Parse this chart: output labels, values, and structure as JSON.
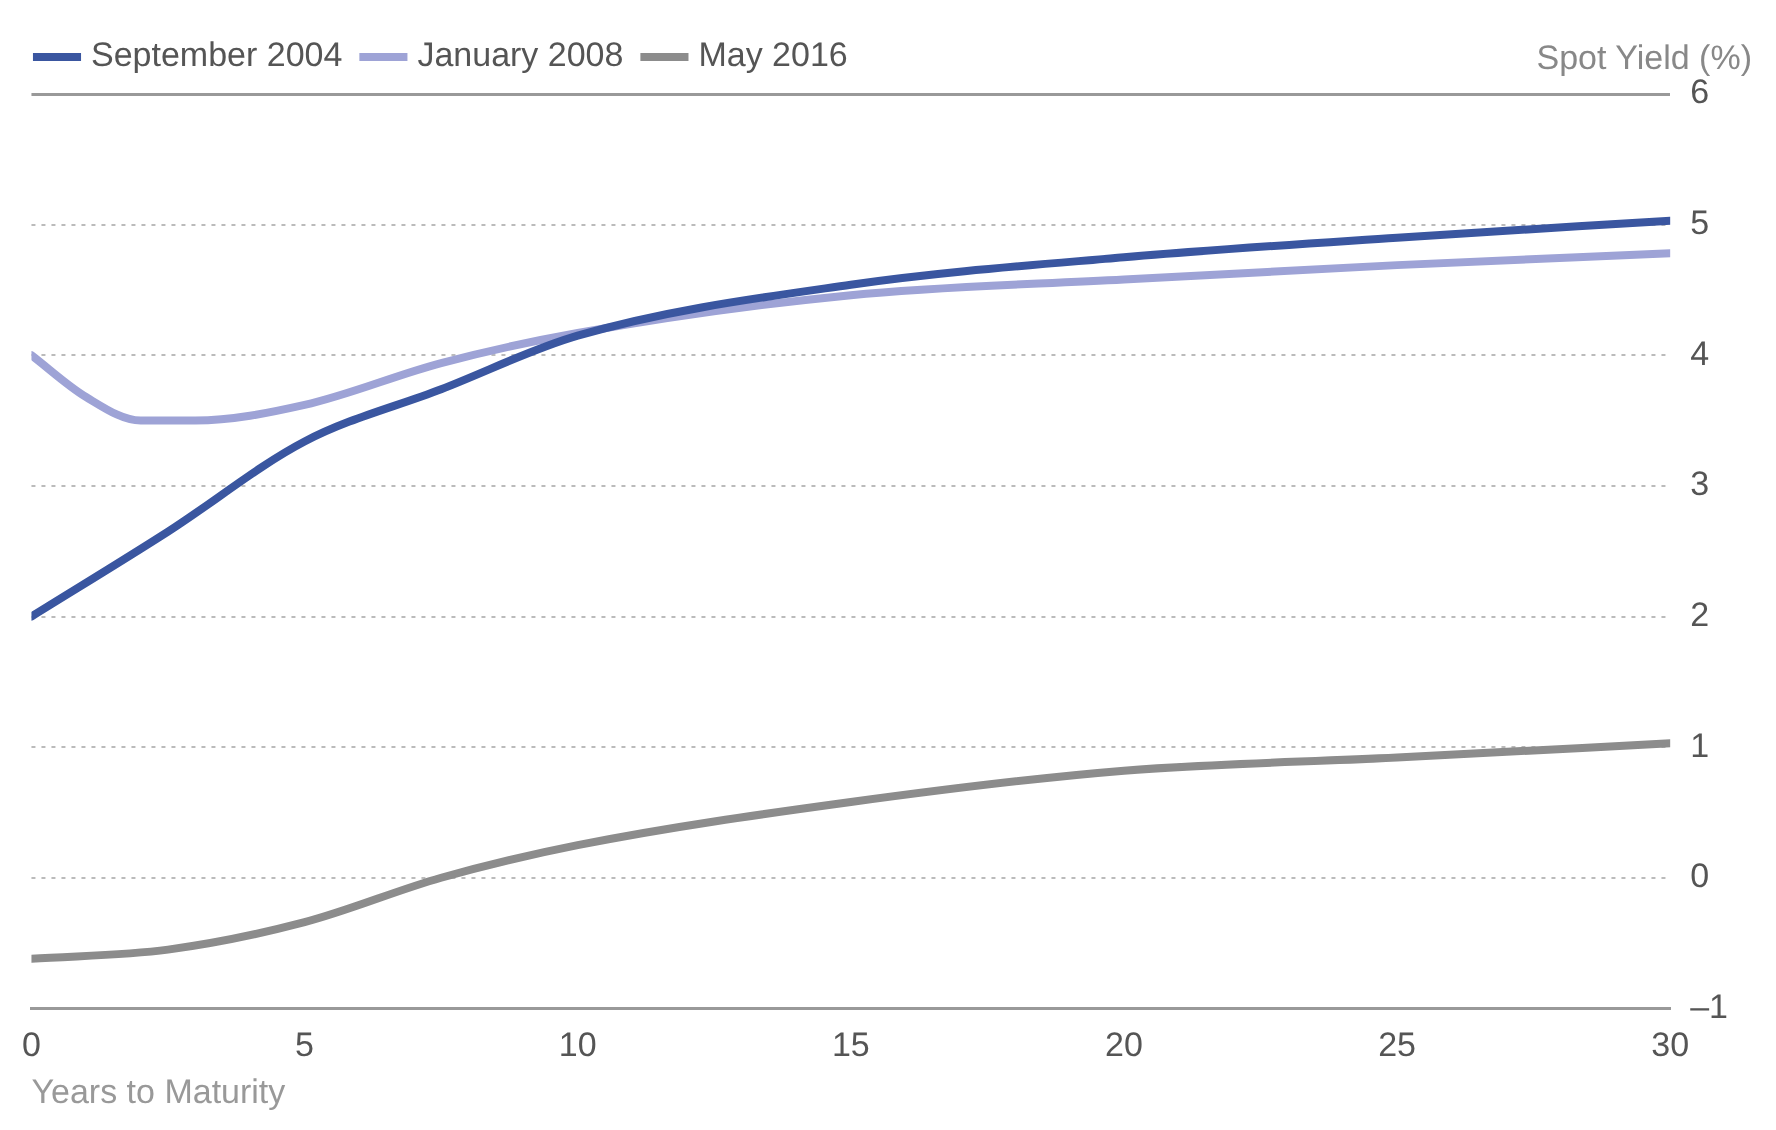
{
  "chart_data": {
    "type": "line",
    "xlabel": "Years to Maturity",
    "ylabel": "Spot Yield (%)",
    "xlim": [
      0,
      30
    ],
    "xticks": [
      0,
      5,
      10,
      15,
      20,
      25,
      30
    ],
    "ylim": [
      -1,
      6
    ],
    "yticks": [
      {
        "value": -1,
        "label": "–1"
      },
      0,
      1,
      2,
      3,
      4,
      5,
      6
    ],
    "grid": "y",
    "legend": "top left",
    "marker": "none",
    "line_style": "solid",
    "series": [
      {
        "name": "September 2004",
        "color": "#3a56a0",
        "x": [
          0,
          2.5,
          5,
          7.5,
          10,
          15,
          20,
          25,
          30
        ],
        "values": [
          2.0,
          2.65,
          3.34,
          3.74,
          4.15,
          4.54,
          4.75,
          4.9,
          5.03
        ]
      },
      {
        "name": "January 2008",
        "color": "#9ea3d6",
        "x": [
          0,
          1,
          2,
          3,
          5,
          7.5,
          10,
          15,
          20,
          25,
          30
        ],
        "values": [
          4.0,
          3.68,
          3.5,
          3.5,
          3.62,
          3.94,
          4.17,
          4.46,
          4.58,
          4.69,
          4.78
        ]
      },
      {
        "name": "May 2016",
        "color": "#8c8c8c",
        "x": [
          0,
          2.5,
          5,
          7.5,
          10,
          15,
          20,
          25,
          30
        ],
        "values": [
          -0.62,
          -0.55,
          -0.34,
          0.0,
          0.25,
          0.58,
          0.82,
          0.92,
          1.03
        ]
      }
    ]
  }
}
